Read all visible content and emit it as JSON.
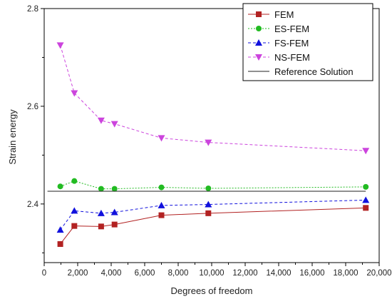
{
  "chart_data": {
    "type": "line",
    "title": "",
    "xlabel": "Degrees of freedom",
    "ylabel": "Strain energy",
    "xlim": [
      0,
      20000
    ],
    "ylim": [
      2.28,
      2.8
    ],
    "x_ticks": [
      0,
      2000,
      4000,
      6000,
      8000,
      10000,
      12000,
      14000,
      16000,
      18000,
      20000
    ],
    "x_tick_labels": [
      "0",
      "2,000",
      "4,000",
      "6,000",
      "8,000",
      "10,000",
      "12,000",
      "14,000",
      "16,000",
      "18,000",
      "20,000"
    ],
    "y_ticks": [
      2.4,
      2.6,
      2.8
    ],
    "y_tick_labels": [
      "2.4",
      "2.6",
      "2.8"
    ],
    "x_minor_ticks": [
      1000,
      3000,
      5000,
      7000,
      9000,
      11000,
      13000,
      15000,
      17000,
      19000
    ],
    "y_minor_ticks": [
      2.3,
      2.5,
      2.7
    ],
    "grid": false,
    "legend_position": "top-right",
    "x": [
      962,
      1800,
      3400,
      4200,
      7000,
      9800,
      19200
    ],
    "series": [
      {
        "name": "FEM",
        "color": "#b22222",
        "line_style": "solid",
        "marker": "square",
        "values": [
          2.318,
          2.355,
          2.354,
          2.358,
          2.377,
          2.381,
          2.392
        ]
      },
      {
        "name": "ES-FEM",
        "color": "#22bb22",
        "line_style": "dotted",
        "marker": "circle",
        "values": [
          2.436,
          2.447,
          2.431,
          2.431,
          2.434,
          2.432,
          2.435
        ]
      },
      {
        "name": "FS-FEM",
        "color": "#1111dd",
        "line_style": "dashed",
        "marker": "triangle-up",
        "values": [
          2.347,
          2.386,
          2.381,
          2.383,
          2.397,
          2.399,
          2.408
        ]
      },
      {
        "name": "NS-FEM",
        "color": "#cc44dd",
        "line_style": "dashed",
        "marker": "triangle-down",
        "values": [
          2.725,
          2.627,
          2.571,
          2.564,
          2.535,
          2.526,
          2.509
        ]
      },
      {
        "name": "Reference Solution",
        "color": "#222222",
        "line_style": "solid",
        "marker": "none",
        "values": [
          2.426,
          2.426,
          2.426,
          2.426,
          2.426,
          2.426,
          2.426
        ]
      }
    ]
  }
}
